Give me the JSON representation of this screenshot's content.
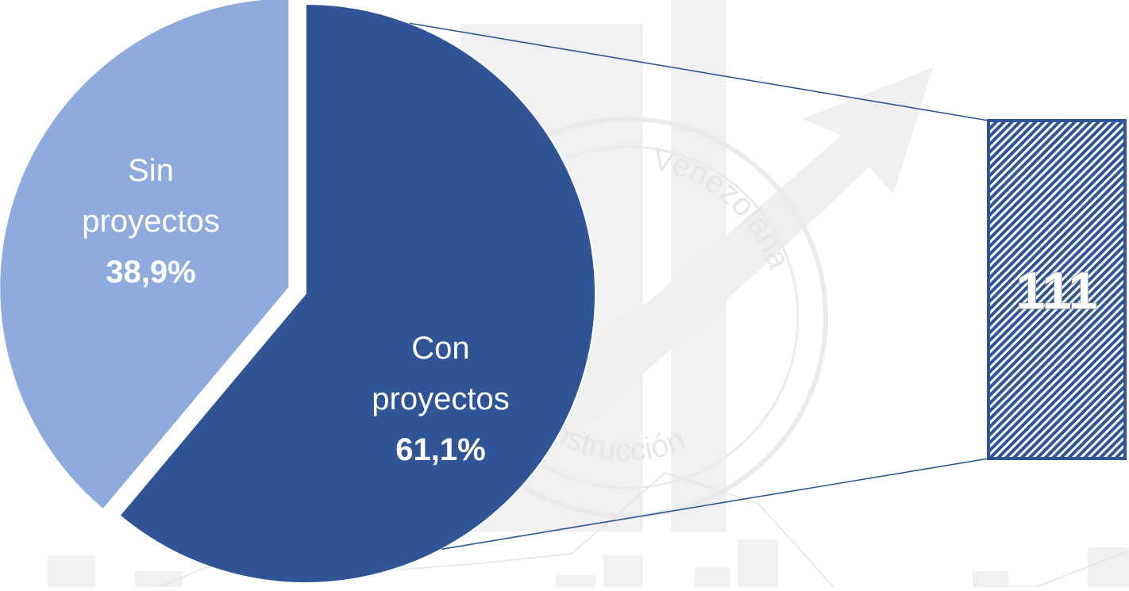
{
  "chart_data": {
    "type": "pie",
    "slices": [
      {
        "name": "Con proyectos",
        "label_lines": [
          "Con",
          "proyectos"
        ],
        "value": 61.1,
        "value_label": "61,1%",
        "color": "#2f5597",
        "exploded": false
      },
      {
        "name": "Sin proyectos",
        "label_lines": [
          "Sin",
          "proyectos"
        ],
        "value": 38.9,
        "value_label": "38,9%",
        "color": "#8faadc",
        "exploded": true
      }
    ],
    "start_angle_deg": 0,
    "direction": "clockwise",
    "callout": {
      "value": "111",
      "links_to": "Con proyectos",
      "fill_color": "#2f5597",
      "pattern": "diagonal-hatch"
    },
    "watermark": {
      "ring_text_top": "Venezolana",
      "ring_text_bottom": "Construcción",
      "color": "#d9d9d9"
    }
  }
}
